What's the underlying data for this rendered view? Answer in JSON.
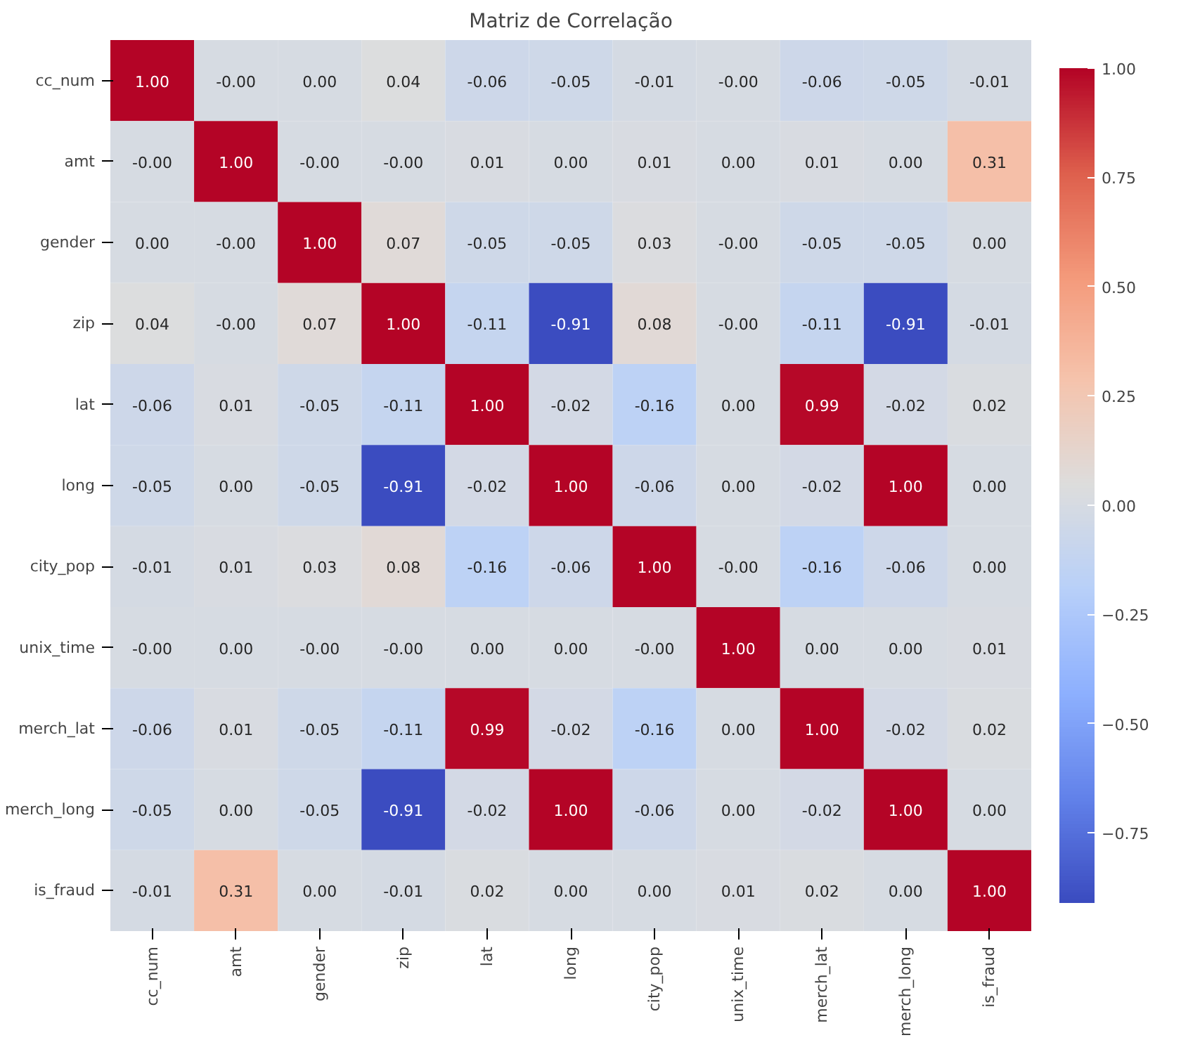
{
  "chart_data": {
    "type": "heatmap",
    "title": "Matriz de Correlação",
    "categories": [
      "cc_num",
      "amt",
      "gender",
      "zip",
      "lat",
      "long",
      "city_pop",
      "unix_time",
      "merch_lat",
      "merch_long",
      "is_fraud"
    ],
    "y_categories": [
      "cc_num",
      "amt",
      "gender",
      "zip",
      "lat",
      "long",
      "city_pop",
      "unix_time",
      "merch_lat",
      "merch_long",
      "is_fraud"
    ],
    "cells": [
      [
        1.0,
        -0.0,
        0.0,
        0.04,
        -0.06,
        -0.05,
        -0.01,
        -0.0,
        -0.06,
        -0.05,
        -0.01
      ],
      [
        -0.0,
        1.0,
        -0.0,
        -0.0,
        0.01,
        0.0,
        0.01,
        0.0,
        0.01,
        0.0,
        0.31
      ],
      [
        0.0,
        -0.0,
        1.0,
        0.07,
        -0.05,
        -0.05,
        0.03,
        -0.0,
        -0.05,
        -0.05,
        0.0
      ],
      [
        0.04,
        -0.0,
        0.07,
        1.0,
        -0.11,
        -0.91,
        0.08,
        -0.0,
        -0.11,
        -0.91,
        -0.01
      ],
      [
        -0.06,
        0.01,
        -0.05,
        -0.11,
        1.0,
        -0.02,
        -0.16,
        0.0,
        0.99,
        -0.02,
        0.02
      ],
      [
        -0.05,
        0.0,
        -0.05,
        -0.91,
        -0.02,
        1.0,
        -0.06,
        0.0,
        -0.02,
        1.0,
        0.0
      ],
      [
        -0.01,
        0.01,
        0.03,
        0.08,
        -0.16,
        -0.06,
        1.0,
        -0.0,
        -0.16,
        -0.06,
        0.0
      ],
      [
        -0.0,
        0.0,
        -0.0,
        -0.0,
        0.0,
        0.0,
        -0.0,
        1.0,
        0.0,
        0.0,
        0.01
      ],
      [
        -0.06,
        0.01,
        -0.05,
        -0.11,
        0.99,
        -0.02,
        -0.16,
        0.0,
        1.0,
        -0.02,
        0.02
      ],
      [
        -0.05,
        0.0,
        -0.05,
        -0.91,
        -0.02,
        1.0,
        -0.06,
        0.0,
        -0.02,
        1.0,
        0.0
      ],
      [
        -0.01,
        0.31,
        0.0,
        -0.01,
        0.02,
        0.0,
        0.0,
        0.01,
        0.02,
        0.0,
        1.0
      ]
    ],
    "cell_labels": [
      [
        "1.00",
        "-0.00",
        "0.00",
        "0.04",
        "-0.06",
        "-0.05",
        "-0.01",
        "-0.00",
        "-0.06",
        "-0.05",
        "-0.01"
      ],
      [
        "-0.00",
        "1.00",
        "-0.00",
        "-0.00",
        "0.01",
        "0.00",
        "0.01",
        "0.00",
        "0.01",
        "0.00",
        "0.31"
      ],
      [
        "0.00",
        "-0.00",
        "1.00",
        "0.07",
        "-0.05",
        "-0.05",
        "0.03",
        "-0.00",
        "-0.05",
        "-0.05",
        "0.00"
      ],
      [
        "0.04",
        "-0.00",
        "0.07",
        "1.00",
        "-0.11",
        "-0.91",
        "0.08",
        "-0.00",
        "-0.11",
        "-0.91",
        "-0.01"
      ],
      [
        "-0.06",
        "0.01",
        "-0.05",
        "-0.11",
        "1.00",
        "-0.02",
        "-0.16",
        "0.00",
        "0.99",
        "-0.02",
        "0.02"
      ],
      [
        "-0.05",
        "0.00",
        "-0.05",
        "-0.91",
        "-0.02",
        "1.00",
        "-0.06",
        "0.00",
        "-0.02",
        "1.00",
        "0.00"
      ],
      [
        "-0.01",
        "0.01",
        "0.03",
        "0.08",
        "-0.16",
        "-0.06",
        "1.00",
        "-0.00",
        "-0.16",
        "-0.06",
        "0.00"
      ],
      [
        "-0.00",
        "0.00",
        "-0.00",
        "-0.00",
        "0.00",
        "0.00",
        "-0.00",
        "1.00",
        "0.00",
        "0.00",
        "0.01"
      ],
      [
        "-0.06",
        "0.01",
        "-0.05",
        "-0.11",
        "0.99",
        "-0.02",
        "-0.16",
        "0.00",
        "1.00",
        "-0.02",
        "0.02"
      ],
      [
        "-0.05",
        "0.00",
        "-0.05",
        "-0.91",
        "-0.02",
        "1.00",
        "-0.06",
        "0.00",
        "-0.02",
        "1.00",
        "0.00"
      ],
      [
        "-0.01",
        "0.31",
        "0.00",
        "-0.01",
        "0.02",
        "0.00",
        "0.00",
        "0.01",
        "0.02",
        "0.00",
        "1.00"
      ]
    ],
    "clim": [
      -0.91,
      1.0
    ],
    "cticks": [
      {
        "value": -0.75,
        "label": "−0.75"
      },
      {
        "value": -0.5,
        "label": "−0.50"
      },
      {
        "value": -0.25,
        "label": "−0.25"
      },
      {
        "value": 0,
        "label": "0.00"
      },
      {
        "value": 0.25,
        "label": "0.25"
      },
      {
        "value": 0.5,
        "label": "0.50"
      },
      {
        "value": 0.75,
        "label": "0.75"
      },
      {
        "value": 1.0,
        "label": "1.00"
      }
    ]
  }
}
